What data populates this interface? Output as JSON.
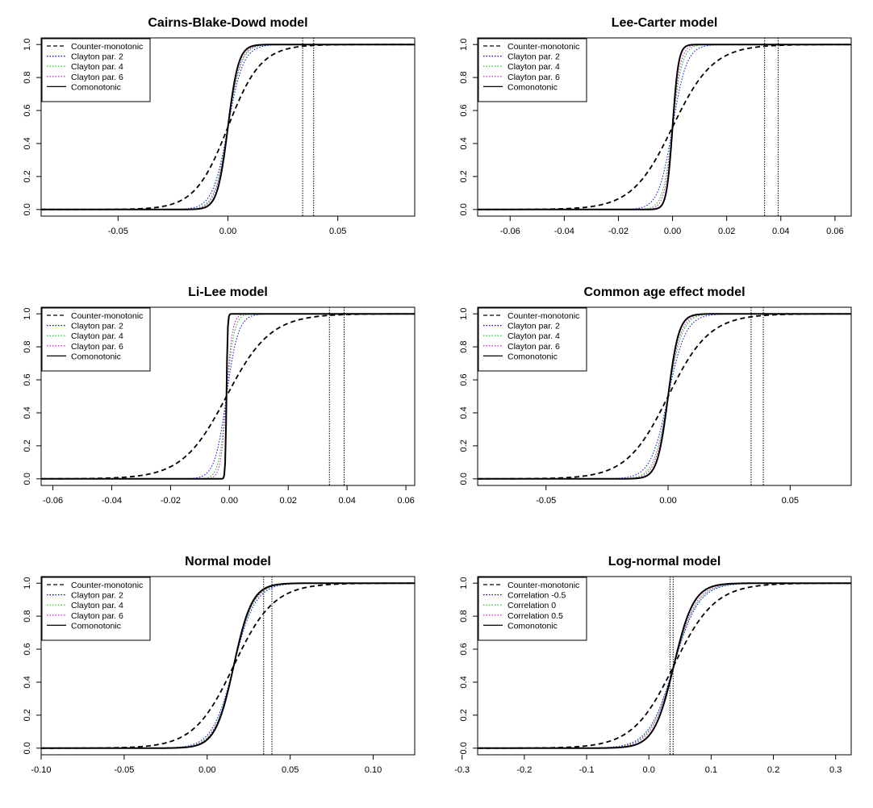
{
  "colors": {
    "counter": "#000000",
    "clayton2": "#0000ff",
    "clayton4": "#00cc00",
    "clayton6": "#cc00cc",
    "comonotonic": "#000000",
    "vlines": "#000000"
  },
  "chart_data": [
    {
      "type": "line",
      "title": "Cairns-Blake-Dowd model",
      "xlim": [
        -0.085,
        0.085
      ],
      "ylim": [
        0,
        1
      ],
      "xticks": [
        "-0.05",
        "0.00",
        "0.05"
      ],
      "yticks": [
        "0.0",
        "0.2",
        "0.4",
        "0.6",
        "0.8",
        "1.0"
      ],
      "legend": [
        "Counter-monotonic",
        "Clayton par. 2",
        "Clayton par. 4",
        "Clayton par. 6",
        "Comonotonic"
      ],
      "legend_position": "top-left",
      "center": 0.0,
      "vlines": [
        0.034,
        0.039
      ],
      "series": [
        {
          "name": "Counter-monotonic",
          "scale": 0.0075
        },
        {
          "name": "Clayton par. 2",
          "scale": 0.0035
        },
        {
          "name": "Clayton par. 4",
          "scale": 0.003
        },
        {
          "name": "Clayton par. 6",
          "scale": 0.0028
        },
        {
          "name": "Comonotonic",
          "scale": 0.0024
        }
      ]
    },
    {
      "type": "line",
      "title": "Lee-Carter model",
      "xlim": [
        -0.072,
        0.066
      ],
      "ylim": [
        0,
        1
      ],
      "xticks": [
        "-0.06",
        "-0.04",
        "-0.02",
        "0.00",
        "0.02",
        "0.04",
        "0.06"
      ],
      "yticks": [
        "0.0",
        "0.2",
        "0.4",
        "0.6",
        "0.8",
        "1.0"
      ],
      "legend": [
        "Counter-monotonic",
        "Clayton par. 2",
        "Clayton par. 4",
        "Clayton par. 6",
        "Comonotonic"
      ],
      "legend_position": "top-left",
      "center": 0.0,
      "vlines": [
        0.034,
        0.039
      ],
      "series": [
        {
          "name": "Counter-monotonic",
          "scale": 0.0075
        },
        {
          "name": "Clayton par. 2",
          "scale": 0.0026
        },
        {
          "name": "Clayton par. 4",
          "scale": 0.0018
        },
        {
          "name": "Clayton par. 6",
          "scale": 0.0015
        },
        {
          "name": "Comonotonic",
          "scale": 0.0011
        }
      ]
    },
    {
      "type": "line",
      "title": "Li-Lee model",
      "xlim": [
        -0.064,
        0.063
      ],
      "ylim": [
        0,
        1
      ],
      "xticks": [
        "-0.06",
        "-0.04",
        "-0.02",
        "0.00",
        "0.02",
        "0.04",
        "0.06"
      ],
      "yticks": [
        "0.0",
        "0.2",
        "0.4",
        "0.6",
        "0.8",
        "1.0"
      ],
      "legend": [
        "Counter-monotonic",
        "Clayton par. 2",
        "Clayton par. 4",
        "Clayton par. 6",
        "Comonotonic"
      ],
      "legend_position": "top-left",
      "center": -0.001,
      "vlines": [
        0.034,
        0.039
      ],
      "series": [
        {
          "name": "Counter-monotonic",
          "scale": 0.0075
        },
        {
          "name": "Clayton par. 2",
          "scale": 0.002
        },
        {
          "name": "Clayton par. 4",
          "scale": 0.0013
        },
        {
          "name": "Clayton par. 6",
          "scale": 0.001
        },
        {
          "name": "Comonotonic",
          "scale": 0.0002
        }
      ]
    },
    {
      "type": "line",
      "title": "Common age effect model",
      "xlim": [
        -0.078,
        0.075
      ],
      "ylim": [
        0,
        1
      ],
      "xticks": [
        "-0.05",
        "0.00",
        "0.05"
      ],
      "yticks": [
        "0.0",
        "0.2",
        "0.4",
        "0.6",
        "0.8",
        "1.0"
      ],
      "legend": [
        "Counter-monotonic",
        "Clayton par. 2",
        "Clayton par. 4",
        "Clayton par. 6",
        "Comonotonic"
      ],
      "legend_position": "top-left",
      "center": 0.0,
      "vlines": [
        0.034,
        0.039
      ],
      "series": [
        {
          "name": "Counter-monotonic",
          "scale": 0.0085
        },
        {
          "name": "Clayton par. 2",
          "scale": 0.0036
        },
        {
          "name": "Clayton par. 4",
          "scale": 0.0029
        },
        {
          "name": "Clayton par. 6",
          "scale": 0.0026
        },
        {
          "name": "Comonotonic",
          "scale": 0.0022
        }
      ]
    },
    {
      "type": "line",
      "title": "Normal model",
      "xlim": [
        -0.1,
        0.125
      ],
      "ylim": [
        0,
        1
      ],
      "xticks": [
        "-0.10",
        "-0.05",
        "0.00",
        "0.05",
        "0.10"
      ],
      "yticks": [
        "0.0",
        "0.2",
        "0.4",
        "0.6",
        "0.8",
        "1.0"
      ],
      "legend": [
        "Counter-monotonic",
        "Clayton par. 2",
        "Clayton par. 4",
        "Clayton par. 6",
        "Comonotonic"
      ],
      "legend_position": "top-left",
      "center": 0.016,
      "vlines": [
        0.034,
        0.039
      ],
      "series": [
        {
          "name": "Counter-monotonic",
          "scale": 0.012
        },
        {
          "name": "Clayton par. 2",
          "scale": 0.0065
        },
        {
          "name": "Clayton par. 4",
          "scale": 0.006
        },
        {
          "name": "Clayton par. 6",
          "scale": 0.0058
        },
        {
          "name": "Comonotonic",
          "scale": 0.0055
        }
      ]
    },
    {
      "type": "line",
      "title": "Log-normal model",
      "xlim": [
        -0.275,
        0.325
      ],
      "ylim": [
        0,
        1
      ],
      "xticks": [
        "-0.3",
        "-0.2",
        "-0.1",
        "0.0",
        "0.1",
        "0.2",
        "0.3"
      ],
      "yticks": [
        "0.0",
        "0.2",
        "0.4",
        "0.6",
        "0.8",
        "1.0"
      ],
      "legend": [
        "Counter-monotonic",
        "Correlation -0.5",
        "Correlation 0",
        "Correlation 0.5",
        "Comonotonic"
      ],
      "legend_position": "top-left",
      "center": 0.04,
      "vlines": [
        0.034,
        0.039
      ],
      "series": [
        {
          "name": "Counter-monotonic",
          "scale": 0.033
        },
        {
          "name": "Correlation -0.5",
          "scale": 0.02
        },
        {
          "name": "Correlation 0",
          "scale": 0.019
        },
        {
          "name": "Correlation 0.5",
          "scale": 0.018
        },
        {
          "name": "Comonotonic",
          "scale": 0.016
        }
      ]
    }
  ]
}
